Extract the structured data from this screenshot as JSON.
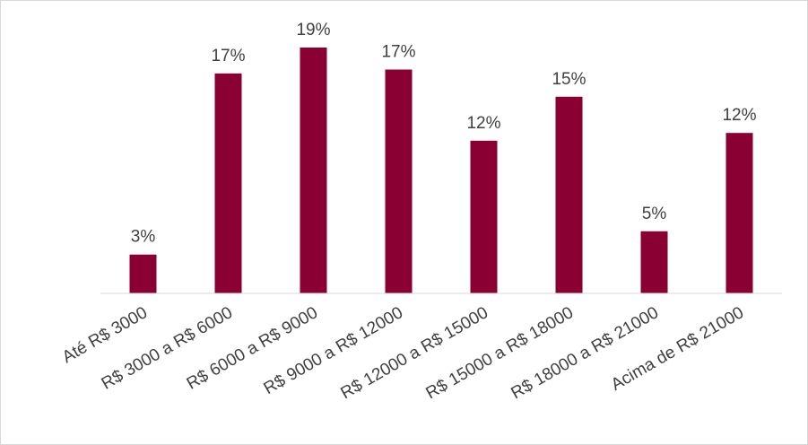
{
  "chart_data": {
    "type": "bar",
    "categories": [
      "Até R$ 3000",
      "R$ 3000 a R$ 6000",
      "R$ 6000 a R$ 9000",
      "R$ 9000 a R$ 12000",
      "R$ 12000 a R$ 15000",
      "R$ 15000 a R$ 18000",
      "R$ 18000 a R$ 21000",
      "Acima de R$ 21000"
    ],
    "values": [
      3.0,
      17.0,
      19.0,
      17.3,
      11.8,
      15.2,
      4.8,
      12.4
    ],
    "value_labels": [
      "3%",
      "17%",
      "19%",
      "17%",
      "12%",
      "15%",
      "5%",
      "12%"
    ],
    "color": "#8b0033",
    "ylim": [
      0,
      22
    ]
  }
}
